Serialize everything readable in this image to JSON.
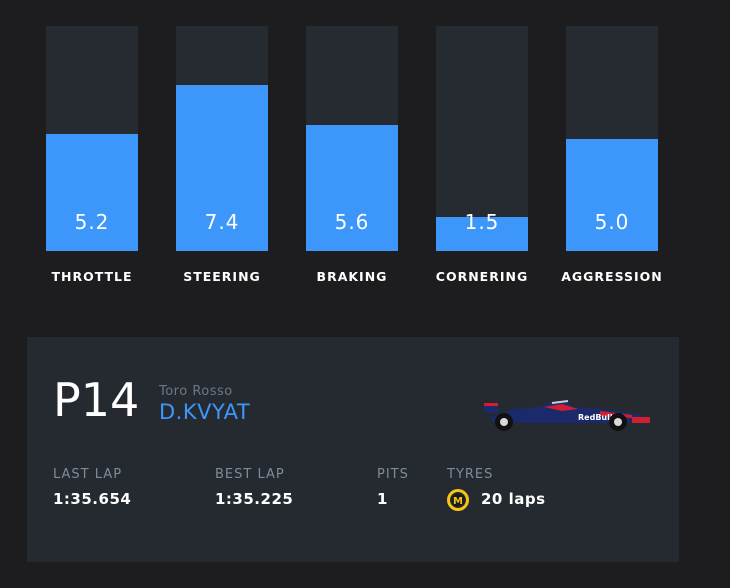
{
  "driver_ratings": [
    {
      "label": "THROTTLE",
      "value": "5.2",
      "level": 0.52
    },
    {
      "label": "STEERING",
      "value": "7.4",
      "level": 0.74
    },
    {
      "label": "BRAKING",
      "value": "5.6",
      "level": 0.56
    },
    {
      "label": "CORNERING",
      "value": "1.5",
      "level": 0.15
    },
    {
      "label": "AGGRESSION",
      "value": "5.0",
      "level": 0.5
    }
  ],
  "driver_card": {
    "position": "P14",
    "team": "Toro Rosso",
    "driver": "D.KVYAT",
    "last_lap_label": "LAST LAP",
    "last_lap_value": "1:35.654",
    "best_lap_label": "BEST LAP",
    "best_lap_value": "1:35.225",
    "pits_label": "PITS",
    "pits_value": "1",
    "tyres_label": "TYRES",
    "tyre_compound": "M",
    "tyres_value": "20 laps",
    "car_livery": "Red Bull"
  },
  "colors": {
    "background": "#1d1d1f",
    "card": "#252a31",
    "bar_track": "#262b32",
    "bar_fill": "#3d97fb",
    "accent_blue": "#3d97fb",
    "tyre_medium": "#f5c518",
    "car_body": "#1b2a6b",
    "car_red": "#d01f2e"
  }
}
